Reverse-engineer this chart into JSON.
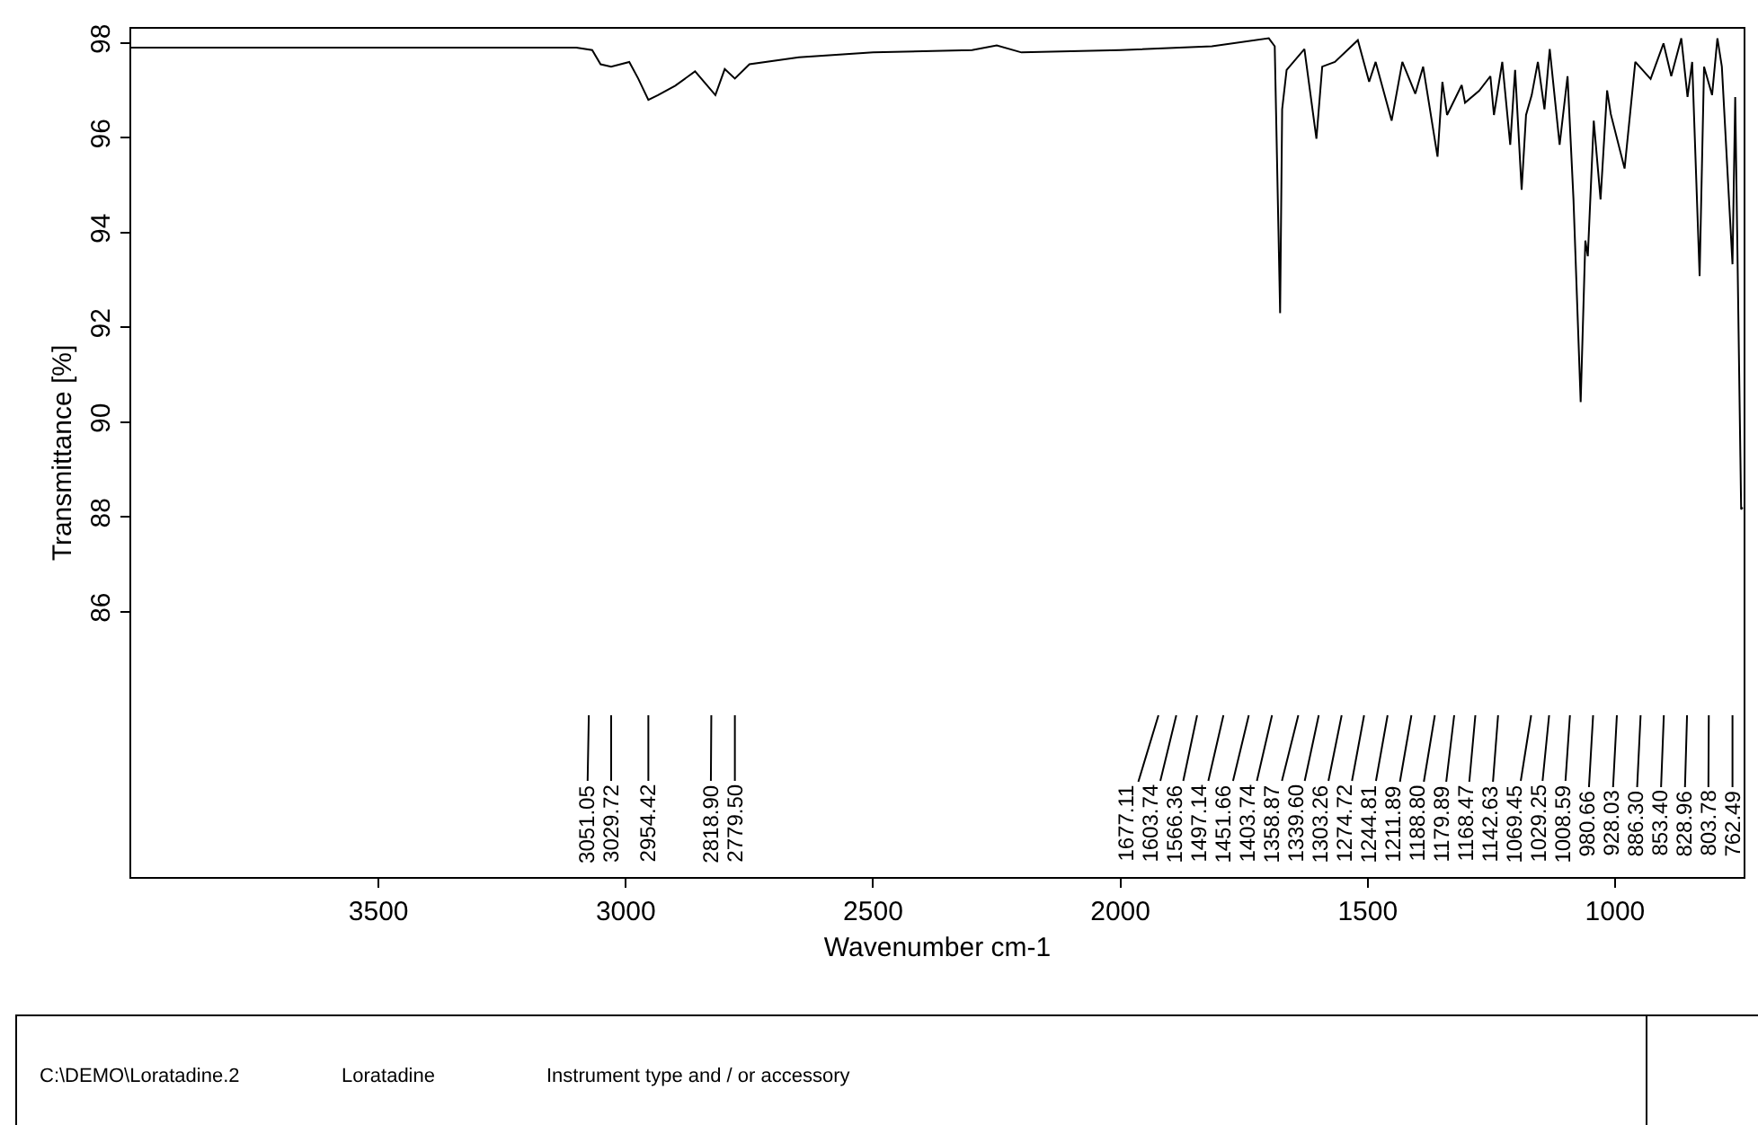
{
  "chart_data": {
    "type": "line",
    "xlabel": "Wavenumber cm-1",
    "ylabel": "Transmittance [%]",
    "xlim": [
      4000,
      740
    ],
    "xticks": [
      3500,
      3000,
      2500,
      2000,
      1500,
      1000
    ],
    "ylim": [
      80.4,
      98.3
    ],
    "yticks": [
      86,
      88,
      90,
      92,
      94,
      96,
      98
    ],
    "marker": "none",
    "line_style": "solid",
    "series": [
      {
        "color": "#000000",
        "x": [
          4000,
          3900,
          3800,
          3700,
          3600,
          3500,
          3400,
          3300,
          3200,
          3100,
          3068,
          3051.05,
          3029.72,
          2993,
          2975,
          2954.42,
          2935,
          2900,
          2860,
          2818.9,
          2800,
          2779.5,
          2750,
          2650,
          2500,
          2300,
          2250,
          2200,
          2000,
          1815,
          1700,
          1688,
          1677.11,
          1673,
          1664,
          1628,
          1603.74,
          1592,
          1566.36,
          1520,
          1497.14,
          1484,
          1451.66,
          1430,
          1403.74,
          1388,
          1358.87,
          1349,
          1339.6,
          1310,
          1303.26,
          1274.72,
          1252,
          1244.81,
          1228,
          1211.89,
          1202,
          1188.8,
          1179.89,
          1168.47,
          1156,
          1142.63,
          1132,
          1112,
          1096,
          1084,
          1069.45,
          1060,
          1055,
          1043,
          1029.25,
          1016,
          1008.59,
          980.66,
          959,
          928.03,
          902,
          886.3,
          866,
          853.4,
          844,
          828.96,
          820,
          803.78,
          793,
          784,
          762.49,
          757,
          745,
          742
        ],
        "values": [
          97.9,
          97.9,
          97.9,
          97.9,
          97.9,
          97.9,
          97.9,
          97.9,
          97.9,
          97.9,
          97.85,
          97.55,
          97.5,
          97.6,
          97.25,
          96.8,
          96.9,
          97.1,
          97.4,
          96.9,
          97.45,
          97.25,
          97.55,
          97.7,
          97.8,
          97.85,
          97.95,
          97.8,
          97.85,
          97.93,
          98.1,
          97.93,
          92.3,
          96.6,
          97.43,
          97.87,
          95.98,
          97.5,
          97.6,
          98.06,
          97.18,
          97.6,
          96.36,
          97.6,
          96.93,
          97.5,
          95.6,
          97.18,
          96.48,
          97.11,
          96.74,
          96.99,
          97.3,
          96.48,
          97.6,
          95.85,
          97.43,
          94.9,
          96.48,
          96.9,
          97.6,
          96.6,
          97.87,
          95.85,
          97.3,
          94.7,
          90.42,
          93.83,
          93.5,
          96.36,
          94.7,
          97.0,
          96.5,
          95.35,
          97.6,
          97.24,
          97.99,
          97.3,
          98.1,
          96.86,
          97.6,
          93.08,
          97.5,
          96.9,
          98.1,
          97.5,
          93.33,
          96.86,
          88.16,
          88.2
        ]
      }
    ],
    "annotations": [
      {
        "text": "3051.05",
        "x": 3051.05,
        "y": 97.55
      },
      {
        "text": "3029.72",
        "x": 3029.72,
        "y": 97.5
      },
      {
        "text": "2954.42",
        "x": 2954.42,
        "y": 96.8
      },
      {
        "text": "2818.90",
        "x": 2818.9,
        "y": 96.9
      },
      {
        "text": "2779.50",
        "x": 2779.5,
        "y": 97.25
      },
      {
        "text": "1677.11",
        "x": 1677.11,
        "y": 92.3
      },
      {
        "text": "1603.74",
        "x": 1603.74,
        "y": 95.98
      },
      {
        "text": "1566.36",
        "x": 1566.36,
        "y": 97.6
      },
      {
        "text": "1497.14",
        "x": 1497.14,
        "y": 97.18
      },
      {
        "text": "1451.66",
        "x": 1451.66,
        "y": 96.36
      },
      {
        "text": "1403.74",
        "x": 1403.74,
        "y": 96.93
      },
      {
        "text": "1358.87",
        "x": 1358.87,
        "y": 95.6
      },
      {
        "text": "1339.60",
        "x": 1339.6,
        "y": 96.48
      },
      {
        "text": "1303.26",
        "x": 1303.26,
        "y": 96.74
      },
      {
        "text": "1274.72",
        "x": 1274.72,
        "y": 96.99
      },
      {
        "text": "1244.81",
        "x": 1244.81,
        "y": 96.48
      },
      {
        "text": "1211.89",
        "x": 1211.89,
        "y": 95.85
      },
      {
        "text": "1188.80",
        "x": 1188.8,
        "y": 94.9
      },
      {
        "text": "1179.89",
        "x": 1179.89,
        "y": 96.48
      },
      {
        "text": "1168.47",
        "x": 1168.47,
        "y": 96.9
      },
      {
        "text": "1142.63",
        "x": 1142.63,
        "y": 96.6
      },
      {
        "text": "1069.45",
        "x": 1069.45,
        "y": 90.42
      },
      {
        "text": "1029.25",
        "x": 1029.25,
        "y": 94.7
      },
      {
        "text": "1008.59",
        "x": 1008.59,
        "y": 96.5
      },
      {
        "text": "980.66",
        "x": 980.66,
        "y": 95.35
      },
      {
        "text": "928.03",
        "x": 928.03,
        "y": 97.24
      },
      {
        "text": "886.30",
        "x": 886.3,
        "y": 97.3
      },
      {
        "text": "853.40",
        "x": 853.4,
        "y": 96.86
      },
      {
        "text": "828.96",
        "x": 828.96,
        "y": 93.08
      },
      {
        "text": "803.78",
        "x": 803.78,
        "y": 96.9
      },
      {
        "text": "762.49",
        "x": 762.49,
        "y": 93.33
      },
      "C:\\DEMO\\Loratadine.2",
      "Loratadine",
      "Instrument type and / or accessory"
    ]
  }
}
